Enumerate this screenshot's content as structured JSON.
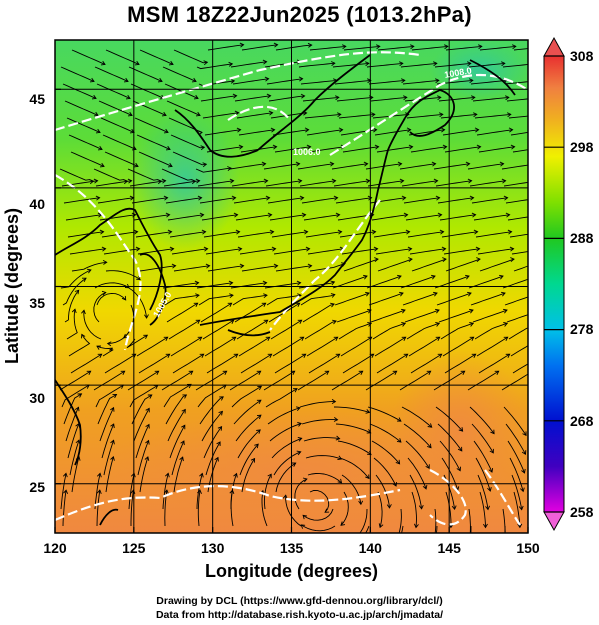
{
  "title": "MSM 18Z22Jun2025 (1013.2hPa)",
  "xlabel": "Longitude (degrees)",
  "ylabel": "Latitude  (degrees)",
  "x_ticks": [
    "120",
    "125",
    "130",
    "135",
    "140",
    "145",
    "150"
  ],
  "y_ticks": [
    "25",
    "30",
    "35",
    "40",
    "45"
  ],
  "colorbar": {
    "min": 258,
    "max": 308,
    "labels": [
      "308",
      "298",
      "288",
      "278",
      "268",
      "258"
    ],
    "label_values": [
      308,
      298,
      288,
      278,
      268,
      258
    ]
  },
  "contour_labels": [
    "1008.0",
    "1006.0",
    "1005.0"
  ],
  "credit": {
    "line1": "Drawing by DCL (https://www.gfd-dennou.org/library/dcl/)",
    "line2": "Data from http://database.rish.kyoto-u.ac.jp/arch/jmadata/"
  },
  "chart_data": {
    "type": "heatmap",
    "variable": "temperature (K)",
    "xlim": [
      120,
      150
    ],
    "ylim": [
      22.5,
      47.5
    ],
    "color_range": [
      258,
      308
    ],
    "grid": true,
    "overlays": [
      "streamlines",
      "isobars",
      "coastlines"
    ]
  }
}
